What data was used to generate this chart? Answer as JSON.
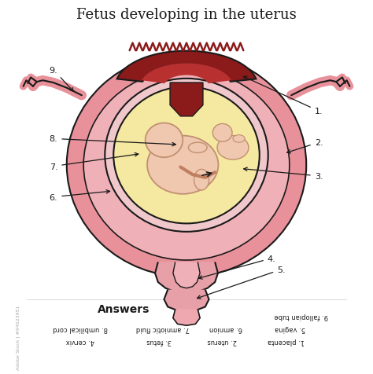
{
  "title": "Fetus developing in the uterus",
  "title_fontsize": 13,
  "background_color": "#ffffff",
  "colors": {
    "outer_uterus": "#e8919a",
    "outer_uterus_dark": "#d4707a",
    "inner_uterus": "#f0b0b8",
    "amniotic_sac_outer": "#f0c8cc",
    "amniotic_fluid": "#f5e8a0",
    "placenta_dark": "#8B1a1a",
    "placenta_medium": "#b83030",
    "cervix_color": "#e8a0a8",
    "fetus_color": "#f0c8b0",
    "fallopian_color": "#d4707a",
    "line_color": "#1a1a1a",
    "label_color": "#1a1a1a",
    "pink_lower": "#f5c8d0"
  },
  "answers_title": "Answers",
  "watermark": "Adobe Stock | #94523951"
}
